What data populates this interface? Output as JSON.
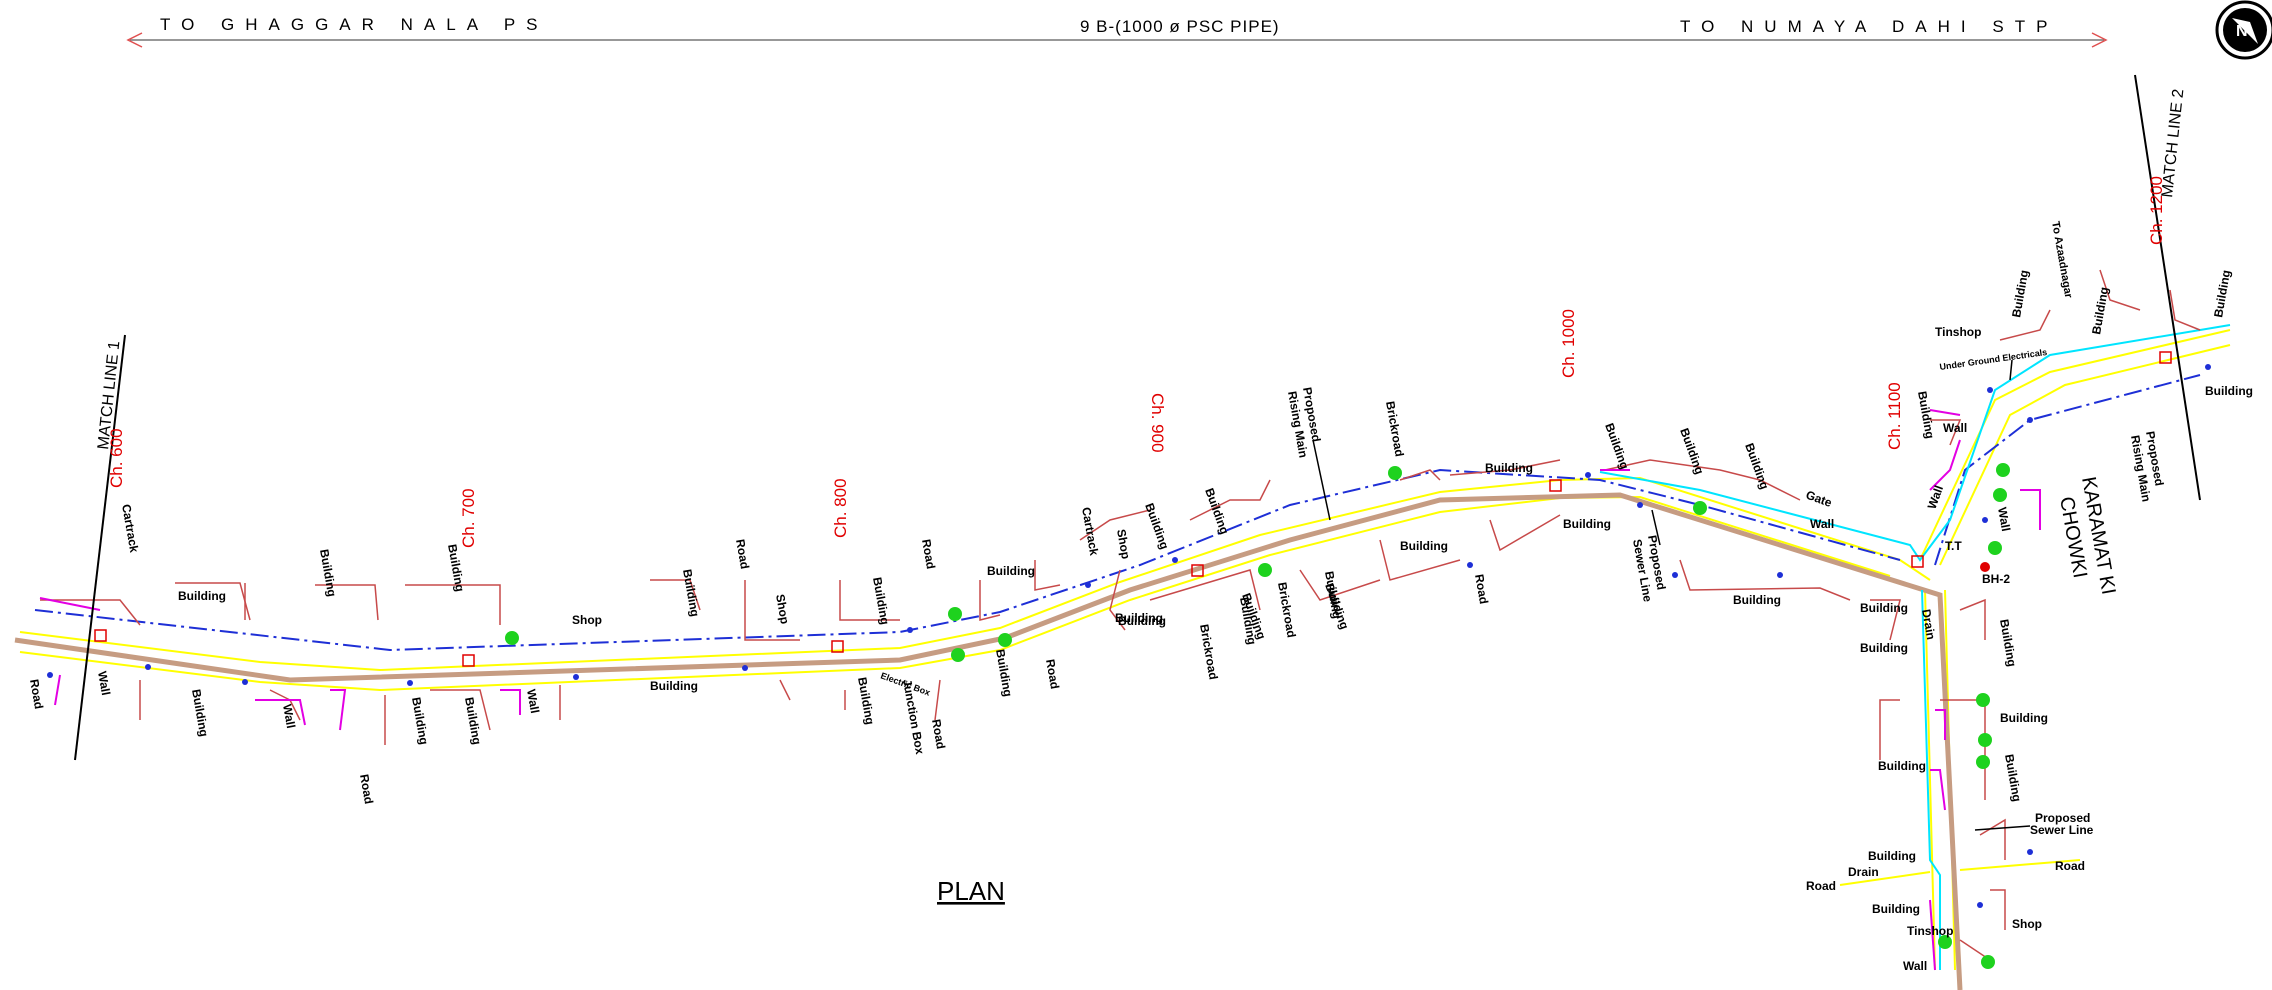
{
  "header": {
    "left": "TO GHAGGAR NALA PS",
    "center": "9 B-(1000 ø PSC PIPE)",
    "right": "TO NUMAYA DAHI STP"
  },
  "north": "N",
  "plan_title": "PLAN",
  "match_lines": [
    "MATCH LINE 1",
    "MATCH LINE 2"
  ],
  "chainages": [
    "Ch. 600",
    "Ch. 700",
    "Ch. 800",
    "Ch. 900",
    "Ch. 1000",
    "Ch. 1100",
    "Ch. 1200"
  ],
  "place": [
    "KARAMAT KI",
    "CHOWKI"
  ],
  "labels": {
    "building": "Building",
    "road": "Road",
    "wall": "Wall",
    "shop": "Shop",
    "cartrack": "Cartrack",
    "brickroad": "Brickroad",
    "drain": "Drain",
    "tinshop": "Tinshop",
    "gate": "Gate",
    "tt": "T.T",
    "bh2": "BH-2",
    "electric_box": "Electric Box",
    "junction_box": "Junction Box",
    "underground": "Under Ground Electricals",
    "to_azaadnagar": "To Azaadnagar",
    "rising_main": [
      "Proposed",
      "Rising Main"
    ],
    "sewer_line": [
      "Proposed",
      "Sewer Line"
    ]
  },
  "colors": {
    "pipe": "#c69c82",
    "road_edge": "#ffff00",
    "rising_main": "#1e2fd6",
    "boundary": "#c74a4a",
    "wall": "#e300e3",
    "drain": "#00e5ff",
    "tree": "#1ed21e",
    "chainage": "#e00000"
  }
}
